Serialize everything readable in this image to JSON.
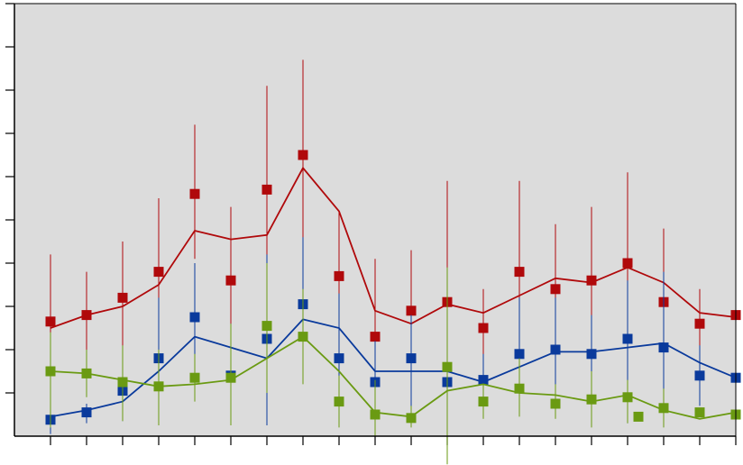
{
  "chart_data": {
    "type": "scatter",
    "title": "",
    "xlabel": "",
    "ylabel": "",
    "x": [
      1,
      2,
      3,
      4,
      5,
      6,
      7,
      8,
      9,
      10,
      11,
      12,
      13,
      14,
      15,
      16,
      17,
      18,
      19,
      20
    ],
    "xlim": [
      0,
      20
    ],
    "ylim": [
      0,
      10
    ],
    "grid": false,
    "background": "#dcdcdc",
    "series": [
      {
        "color": "#b0090b",
        "points": [
          {
            "x": 1.0,
            "y": 2.65,
            "lo": 1.1,
            "hi": 4.2
          },
          {
            "x": 2.0,
            "y": 2.8,
            "lo": 2.0,
            "hi": 3.8
          },
          {
            "x": 3.0,
            "y": 3.2,
            "lo": 2.0,
            "hi": 4.5
          },
          {
            "x": 4.0,
            "y": 3.8,
            "lo": 2.5,
            "hi": 5.5
          },
          {
            "x": 5.0,
            "y": 5.6,
            "lo": 4.1,
            "hi": 7.2
          },
          {
            "x": 6.0,
            "y": 3.6,
            "lo": 1.5,
            "hi": 5.3
          },
          {
            "x": 7.0,
            "y": 5.7,
            "lo": 3.5,
            "hi": 8.1
          },
          {
            "x": 8.0,
            "y": 6.5,
            "lo": 4.4,
            "hi": 8.7
          },
          {
            "x": 9.0,
            "y": 3.7,
            "lo": 2.4,
            "hi": 5.2
          },
          {
            "x": 10.0,
            "y": 2.3,
            "lo": 1.4,
            "hi": 4.1
          },
          {
            "x": 11.0,
            "y": 2.9,
            "lo": 1.4,
            "hi": 4.3
          },
          {
            "x": 12.0,
            "y": 3.1,
            "lo": 1.1,
            "hi": 5.9
          },
          {
            "x": 13.0,
            "y": 2.5,
            "lo": 1.5,
            "hi": 3.4
          },
          {
            "x": 14.0,
            "y": 3.8,
            "lo": 2.2,
            "hi": 5.9
          },
          {
            "x": 15.0,
            "y": 3.4,
            "lo": 1.8,
            "hi": 4.9
          },
          {
            "x": 16.0,
            "y": 3.6,
            "lo": 2.1,
            "hi": 5.3
          },
          {
            "x": 17.0,
            "y": 4.0,
            "lo": 2.4,
            "hi": 6.1
          },
          {
            "x": 18.0,
            "y": 3.1,
            "lo": 1.4,
            "hi": 4.8
          },
          {
            "x": 19.0,
            "y": 2.6,
            "lo": 1.8,
            "hi": 3.4
          },
          {
            "x": 20.0,
            "y": 2.8,
            "lo": 1.7,
            "hi": 4.2
          }
        ],
        "line": [
          2.5,
          2.8,
          3.0,
          3.5,
          4.75,
          4.55,
          4.65,
          6.2,
          5.2,
          2.9,
          2.6,
          3.05,
          2.85,
          3.25,
          3.65,
          3.55,
          3.9,
          3.55,
          2.85,
          2.75
        ]
      },
      {
        "color": "#0a3a9c",
        "points": [
          {
            "x": 1.0,
            "y": 0.38,
            "lo": 0.05,
            "hi": 1.0
          },
          {
            "x": 2.0,
            "y": 0.55,
            "lo": 0.3,
            "hi": 0.75
          },
          {
            "x": 3.0,
            "y": 1.05,
            "lo": 0.35,
            "hi": 1.7
          },
          {
            "x": 4.0,
            "y": 1.8,
            "lo": 0.3,
            "hi": 3.2
          },
          {
            "x": 5.0,
            "y": 2.75,
            "lo": 1.2,
            "hi": 4.0
          },
          {
            "x": 6.0,
            "y": 1.4,
            "lo": 0.35,
            "hi": 2.6
          },
          {
            "x": 7.0,
            "y": 2.25,
            "lo": 0.25,
            "hi": 4.2
          },
          {
            "x": 8.0,
            "y": 3.05,
            "lo": 1.5,
            "hi": 4.6
          },
          {
            "x": 9.0,
            "y": 1.8,
            "lo": 0.5,
            "hi": 3.3
          },
          {
            "x": 10.0,
            "y": 1.25,
            "lo": 0.2,
            "hi": 2.2
          },
          {
            "x": 11.0,
            "y": 1.8,
            "lo": 0.6,
            "hi": 2.8
          },
          {
            "x": 12.0,
            "y": 1.25,
            "lo": 0.3,
            "hi": 2.2
          },
          {
            "x": 13.0,
            "y": 1.3,
            "lo": 0.8,
            "hi": 1.9
          },
          {
            "x": 14.0,
            "y": 1.9,
            "lo": 0.8,
            "hi": 3.2
          },
          {
            "x": 15.0,
            "y": 2.0,
            "lo": 0.8,
            "hi": 3.2
          },
          {
            "x": 16.0,
            "y": 1.9,
            "lo": 0.9,
            "hi": 2.8
          },
          {
            "x": 17.0,
            "y": 2.25,
            "lo": 0.3,
            "hi": 3.6
          },
          {
            "x": 18.0,
            "y": 2.05,
            "lo": 0.5,
            "hi": 3.8
          },
          {
            "x": 19.0,
            "y": 1.4,
            "lo": 0.7,
            "hi": 2.1
          },
          {
            "x": 20.0,
            "y": 1.35,
            "lo": 0.3,
            "hi": 2.3
          }
        ],
        "line": [
          0.45,
          0.6,
          0.8,
          1.5,
          2.3,
          2.05,
          1.8,
          2.7,
          2.5,
          1.5,
          1.5,
          1.5,
          1.25,
          1.6,
          1.95,
          1.95,
          2.05,
          2.15,
          1.7,
          1.35
        ]
      },
      {
        "color": "#6a9a12",
        "points": [
          {
            "x": 1.0,
            "y": 1.5,
            "lo": 0.2,
            "hi": 2.4
          },
          {
            "x": 2.0,
            "y": 1.45,
            "lo": 0.9,
            "hi": 2.0
          },
          {
            "x": 3.0,
            "y": 1.25,
            "lo": 0.35,
            "hi": 2.1
          },
          {
            "x": 4.0,
            "y": 1.15,
            "lo": 0.25,
            "hi": 2.0
          },
          {
            "x": 5.0,
            "y": 1.35,
            "lo": 0.8,
            "hi": 1.9
          },
          {
            "x": 6.0,
            "y": 1.35,
            "lo": 0.25,
            "hi": 2.6
          },
          {
            "x": 7.0,
            "y": 2.55,
            "lo": 1.0,
            "hi": 4.0
          },
          {
            "x": 8.0,
            "y": 2.3,
            "lo": 1.2,
            "hi": 3.4
          },
          {
            "x": 9.0,
            "y": 0.8,
            "lo": 0.2,
            "hi": 1.4
          },
          {
            "x": 10.0,
            "y": 0.5,
            "lo": 0.0,
            "hi": 1.3
          },
          {
            "x": 11.0,
            "y": 0.42,
            "lo": 0.2,
            "hi": 0.7
          },
          {
            "x": 12.0,
            "y": 1.6,
            "lo": -0.65,
            "hi": 3.9
          },
          {
            "x": 13.0,
            "y": 0.8,
            "lo": 0.4,
            "hi": 1.2
          },
          {
            "x": 14.0,
            "y": 1.1,
            "lo": 0.45,
            "hi": 1.8
          },
          {
            "x": 15.0,
            "y": 0.75,
            "lo": 0.4,
            "hi": 1.2
          },
          {
            "x": 16.0,
            "y": 0.85,
            "lo": 0.2,
            "hi": 1.5
          },
          {
            "x": 17.0,
            "y": 0.9,
            "lo": 0.3,
            "hi": 1.3
          },
          {
            "x": 17.3,
            "y": 0.45,
            "lo": 0.45,
            "hi": 0.45
          },
          {
            "x": 18.0,
            "y": 0.65,
            "lo": 0.2,
            "hi": 1.1
          },
          {
            "x": 19.0,
            "y": 0.55,
            "lo": 0.55,
            "hi": 0.55
          },
          {
            "x": 20.0,
            "y": 0.5,
            "lo": 0.3,
            "hi": 0.75
          }
        ],
        "line": [
          1.5,
          1.45,
          1.3,
          1.15,
          1.2,
          1.3,
          1.8,
          2.3,
          1.5,
          0.55,
          0.45,
          1.05,
          1.2,
          1.0,
          0.95,
          0.8,
          0.95,
          0.6,
          0.4,
          0.55
        ]
      }
    ]
  }
}
